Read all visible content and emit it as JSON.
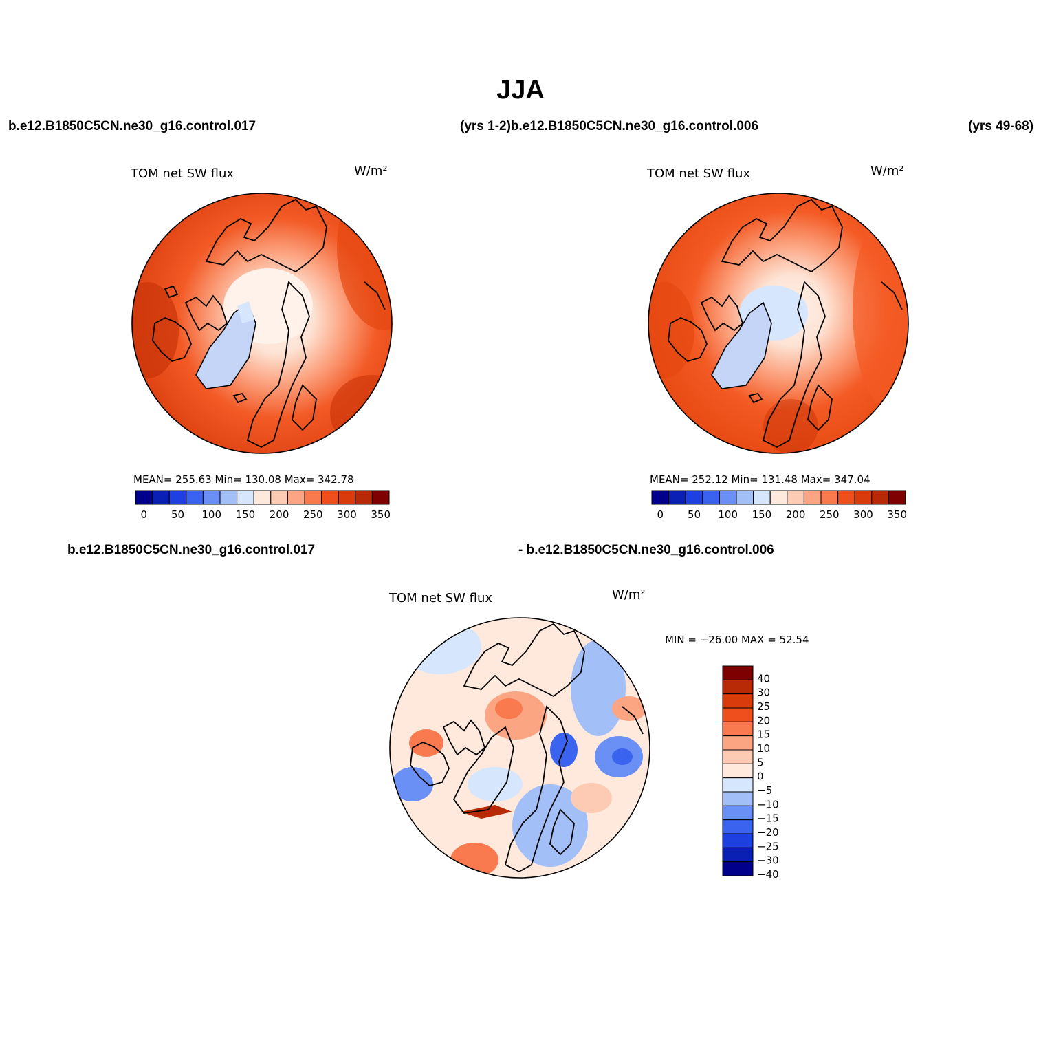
{
  "figure": {
    "title": "JJA",
    "top_left_case": "b.e12.B1850C5CN.ne30_g16.control.017",
    "top_mid_label": "(yrs 1-2)b.e12.B1850C5CN.ne30_g16.control.006",
    "top_right_label": "(yrs 49-68)",
    "bottom_left_case": "b.e12.B1850C5CN.ne30_g16.control.017",
    "bottom_right_case": "- b.e12.B1850C5CN.ne30_g16.control.006"
  },
  "panels": [
    {
      "variable": "TOM net SW flux",
      "units": "W/m²",
      "stats": "MEAN= 255.63   Min= 130.08   Max= 342.78",
      "colorbar_ticks": [
        "0",
        "50",
        "100",
        "150",
        "200",
        "250",
        "300",
        "350"
      ],
      "colorbar_colors": [
        "#00008b",
        "#0a1fb4",
        "#1f40e0",
        "#3a64f0",
        "#6a8ff5",
        "#a3bff8",
        "#d6e6fc",
        "#ffe9dd",
        "#fdcab3",
        "#fca583",
        "#f87a4e",
        "#ee4f1c",
        "#d93b0c",
        "#b82a05",
        "#7f0000"
      ]
    },
    {
      "variable": "TOM net SW flux",
      "units": "W/m²",
      "stats": "MEAN= 252.12   Min= 131.48   Max= 347.04",
      "colorbar_ticks": [
        "0",
        "50",
        "100",
        "150",
        "200",
        "250",
        "300",
        "350"
      ],
      "colorbar_colors": [
        "#00008b",
        "#0a1fb4",
        "#1f40e0",
        "#3a64f0",
        "#6a8ff5",
        "#a3bff8",
        "#d6e6fc",
        "#ffe9dd",
        "#fdcab3",
        "#fca583",
        "#f87a4e",
        "#ee4f1c",
        "#d93b0c",
        "#b82a05",
        "#7f0000"
      ]
    },
    {
      "variable": "TOM net SW flux",
      "units": "W/m²",
      "stats": "MIN = −26.00 MAX =  52.54",
      "colorbar_ticks": [
        "40",
        "30",
        "25",
        "20",
        "15",
        "10",
        "5",
        "0",
        "−5",
        "−10",
        "−15",
        "−20",
        "−25",
        "−30",
        "−40"
      ],
      "colorbar_colors": [
        "#7f0000",
        "#b82a05",
        "#d93b0c",
        "#ee4f1c",
        "#f87a4e",
        "#fca583",
        "#fdcab3",
        "#ffe9dd",
        "#d6e6fc",
        "#a3bff8",
        "#6a8ff5",
        "#3a64f0",
        "#1f40e0",
        "#0a1fb4",
        "#00008b"
      ]
    }
  ]
}
